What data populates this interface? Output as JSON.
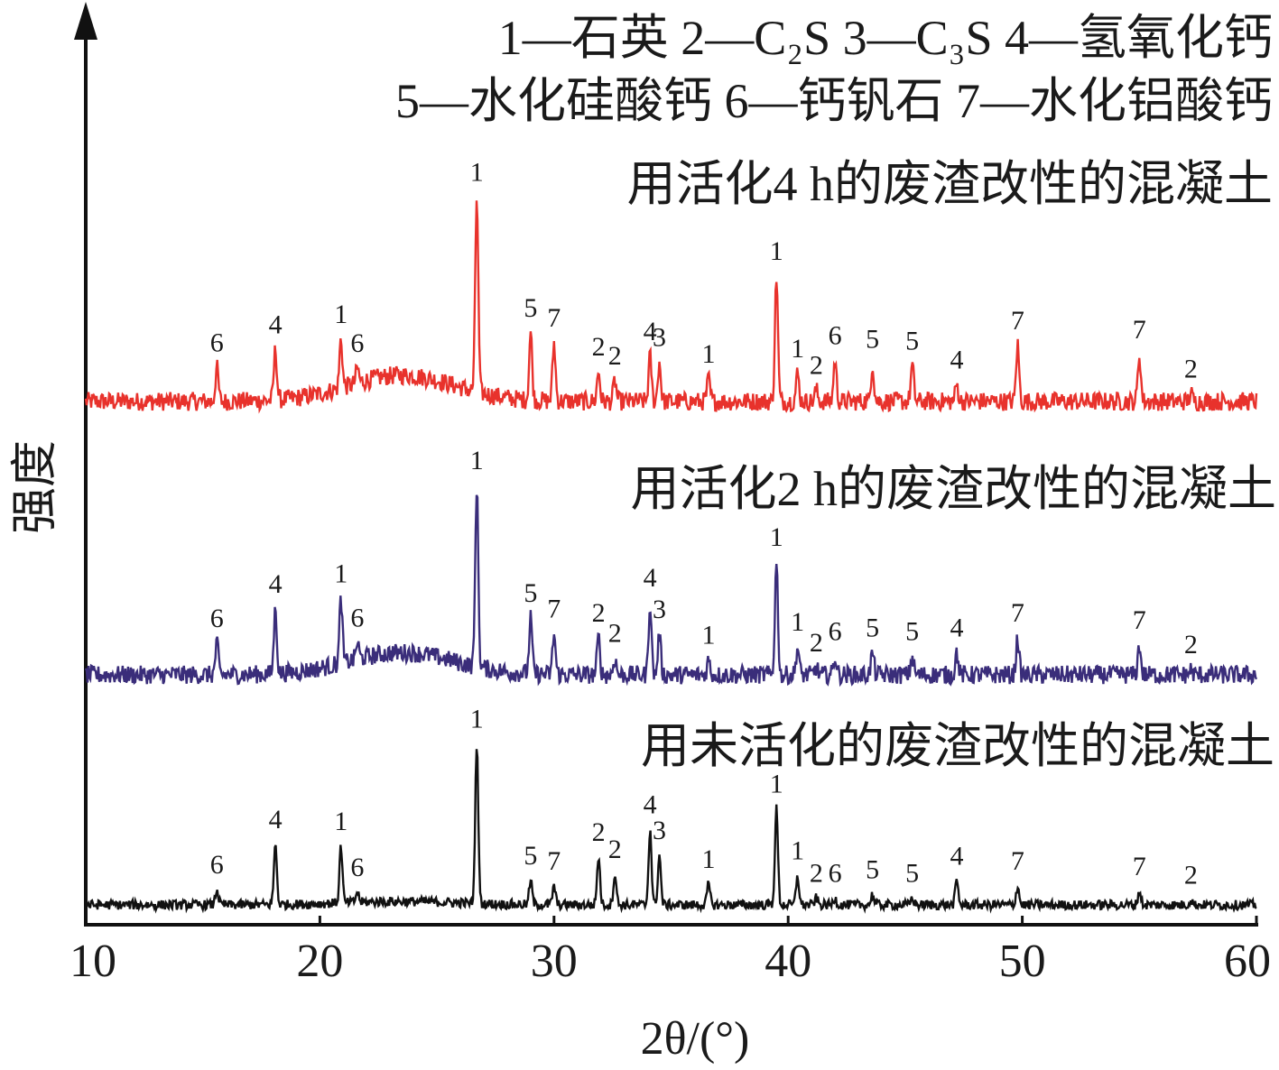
{
  "chart_data": {
    "type": "line",
    "xlabel": "2θ/(°)",
    "ylabel": "强度",
    "xlim": [
      10,
      60
    ],
    "x_ticks": [
      10,
      20,
      30,
      40,
      50,
      60
    ],
    "grid": false,
    "y_tick_labels": false,
    "legend": {
      "line1": "1—石英  2—C₂S   3—C₃S  4—氢氧化钙",
      "line2": "5—水化硅酸钙  6—钙钒石  7—水化铝酸钙",
      "items": [
        {
          "id": "1",
          "phase": "石英"
        },
        {
          "id": "2",
          "phase": "C₂S"
        },
        {
          "id": "3",
          "phase": "C₃S"
        },
        {
          "id": "4",
          "phase": "氢氧化钙"
        },
        {
          "id": "5",
          "phase": "水化硅酸钙"
        },
        {
          "id": "6",
          "phase": "钙钒石"
        },
        {
          "id": "7",
          "phase": "水化铝酸钙"
        }
      ]
    },
    "series": [
      {
        "name": "用活化4 h的废渣改性的混凝土",
        "color": "#e8322c",
        "baseline": 0.0,
        "background_hump": {
          "center": 23.5,
          "width": 3.2,
          "height": 0.7
        },
        "peaks": [
          {
            "x": 15.6,
            "h": 0.9,
            "label": "6"
          },
          {
            "x": 18.1,
            "h": 1.35,
            "label": "4"
          },
          {
            "x": 20.9,
            "h": 1.3,
            "label": "1"
          },
          {
            "x": 21.6,
            "h": 0.4,
            "label": "6"
          },
          {
            "x": 26.7,
            "h": 5.2,
            "label": "1"
          },
          {
            "x": 29.0,
            "h": 1.8,
            "label": "5"
          },
          {
            "x": 30.0,
            "h": 1.55,
            "label": "7"
          },
          {
            "x": 31.9,
            "h": 0.8,
            "label": "2"
          },
          {
            "x": 32.6,
            "h": 0.55,
            "label": "2"
          },
          {
            "x": 34.1,
            "h": 1.2,
            "label": "4"
          },
          {
            "x": 34.5,
            "h": 1.05,
            "label": "3"
          },
          {
            "x": 36.6,
            "h": 0.6,
            "label": "1"
          },
          {
            "x": 39.5,
            "h": 3.35,
            "label": "1"
          },
          {
            "x": 40.4,
            "h": 0.75,
            "label": "1"
          },
          {
            "x": 41.2,
            "h": 0.3,
            "label": "2"
          },
          {
            "x": 42.0,
            "h": 1.1,
            "label": "6"
          },
          {
            "x": 43.6,
            "h": 1.0,
            "label": "5"
          },
          {
            "x": 45.3,
            "h": 0.95,
            "label": "5"
          },
          {
            "x": 47.2,
            "h": 0.45,
            "label": "4"
          },
          {
            "x": 49.8,
            "h": 1.5,
            "label": "7"
          },
          {
            "x": 55.0,
            "h": 1.25,
            "label": "7"
          },
          {
            "x": 57.2,
            "h": 0.2,
            "label": "2"
          }
        ]
      },
      {
        "name": "用活化2 h的废渣改性的混凝土",
        "color": "#3a2d7a",
        "baseline": 0.0,
        "background_hump": {
          "center": 23.5,
          "width": 3.2,
          "height": 0.6
        },
        "peaks": [
          {
            "x": 15.6,
            "h": 0.85,
            "label": "6"
          },
          {
            "x": 18.1,
            "h": 1.75,
            "label": "4"
          },
          {
            "x": 20.9,
            "h": 1.75,
            "label": "1"
          },
          {
            "x": 21.6,
            "h": 0.45,
            "label": "6"
          },
          {
            "x": 26.7,
            "h": 4.9,
            "label": "1"
          },
          {
            "x": 29.0,
            "h": 1.5,
            "label": "5"
          },
          {
            "x": 30.0,
            "h": 1.1,
            "label": "7"
          },
          {
            "x": 31.9,
            "h": 1.0,
            "label": "2"
          },
          {
            "x": 32.6,
            "h": 0.45,
            "label": "2"
          },
          {
            "x": 34.1,
            "h": 1.95,
            "label": "4"
          },
          {
            "x": 34.5,
            "h": 1.1,
            "label": "3"
          },
          {
            "x": 36.6,
            "h": 0.4,
            "label": "1"
          },
          {
            "x": 39.5,
            "h": 3.05,
            "label": "1"
          },
          {
            "x": 40.4,
            "h": 0.75,
            "label": "1"
          },
          {
            "x": 41.2,
            "h": 0.2,
            "label": "2"
          },
          {
            "x": 42.0,
            "h": 0.5,
            "label": "6"
          },
          {
            "x": 43.6,
            "h": 0.6,
            "label": "5"
          },
          {
            "x": 45.3,
            "h": 0.5,
            "label": "5"
          },
          {
            "x": 47.2,
            "h": 0.6,
            "label": "4"
          },
          {
            "x": 49.8,
            "h": 1.0,
            "label": "7"
          },
          {
            "x": 55.0,
            "h": 0.8,
            "label": "7"
          },
          {
            "x": 57.2,
            "h": 0.15,
            "label": "2"
          }
        ]
      },
      {
        "name": "用未活化的废渣改性的混凝土",
        "color": "#111111",
        "baseline": 0.0,
        "background_hump": {
          "center": 23.5,
          "width": 3.5,
          "height": 0.1
        },
        "peaks": [
          {
            "x": 15.6,
            "h": 0.45,
            "label": "6"
          },
          {
            "x": 18.1,
            "h": 1.75,
            "label": "4"
          },
          {
            "x": 20.9,
            "h": 1.65,
            "label": "1"
          },
          {
            "x": 21.6,
            "h": 0.3,
            "label": "6"
          },
          {
            "x": 26.7,
            "h": 4.65,
            "label": "1"
          },
          {
            "x": 29.0,
            "h": 0.7,
            "label": "5"
          },
          {
            "x": 30.0,
            "h": 0.55,
            "label": "7"
          },
          {
            "x": 31.9,
            "h": 1.4,
            "label": "2"
          },
          {
            "x": 32.6,
            "h": 0.9,
            "label": "2"
          },
          {
            "x": 34.1,
            "h": 2.2,
            "label": "4"
          },
          {
            "x": 34.5,
            "h": 1.45,
            "label": "3"
          },
          {
            "x": 36.6,
            "h": 0.6,
            "label": "1"
          },
          {
            "x": 39.5,
            "h": 2.8,
            "label": "1"
          },
          {
            "x": 40.4,
            "h": 0.85,
            "label": "1"
          },
          {
            "x": 41.2,
            "h": 0.2,
            "label": "2"
          },
          {
            "x": 42.0,
            "h": 0.2,
            "label": "6"
          },
          {
            "x": 43.6,
            "h": 0.3,
            "label": "5"
          },
          {
            "x": 45.3,
            "h": 0.2,
            "label": "5"
          },
          {
            "x": 47.2,
            "h": 0.7,
            "label": "4"
          },
          {
            "x": 49.8,
            "h": 0.55,
            "label": "7"
          },
          {
            "x": 55.0,
            "h": 0.4,
            "label": "7"
          },
          {
            "x": 57.2,
            "h": 0.15,
            "label": "2"
          }
        ]
      }
    ]
  }
}
